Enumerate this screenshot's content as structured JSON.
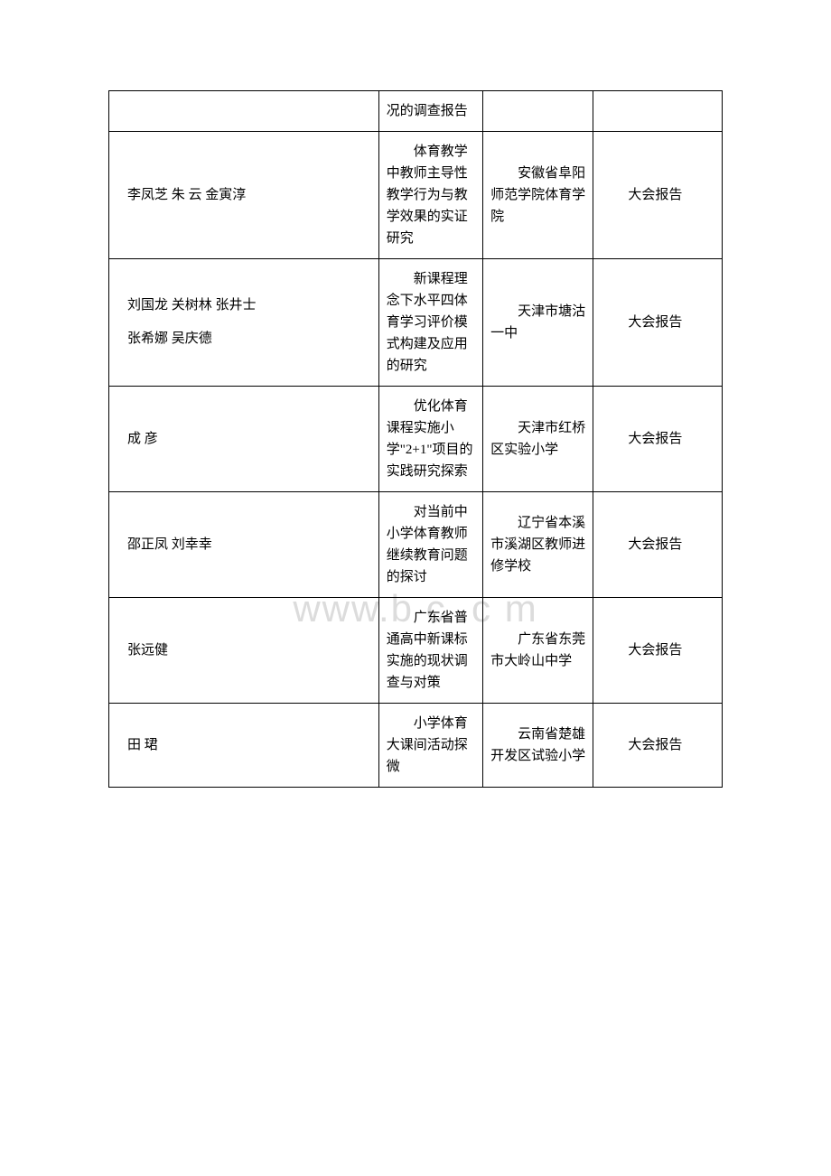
{
  "watermark": "www.b    c  .c   m",
  "table": {
    "columns": [
      "authors",
      "title",
      "organization",
      "type"
    ],
    "column_widths": [
      "44%",
      "17%",
      "18%",
      "21%"
    ],
    "border_color": "#000000",
    "font_size": 15,
    "font_family": "SimSun",
    "text_color": "#000000",
    "background_color": "#ffffff",
    "rows": [
      {
        "authors": "",
        "title": "况的调查报告",
        "organization": "",
        "type": ""
      },
      {
        "authors": "李凤芝 朱 云 金寅淳",
        "title": "体育教学中教师主导性教学行为与教学效果的实证研究",
        "organization": "安徽省阜阳师范学院体育学院",
        "type": "大会报告"
      },
      {
        "authors": "刘国龙 关树林 张井士\n张希娜 吴庆德",
        "title": "新课程理念下水平四体育学习评价模式构建及应用的研究",
        "organization": "天津市塘沽一中",
        "type": "大会报告"
      },
      {
        "authors": "成 彦",
        "title": "优化体育课程实施小学\"2+1\"项目的实践研究探索",
        "organization": "天津市红桥区实验小学",
        "type": "大会报告"
      },
      {
        "authors": "邵正凤 刘幸幸",
        "title": "对当前中小学体育教师继续教育问题的探讨",
        "organization": "辽宁省本溪市溪湖区教师进修学校",
        "type": "大会报告"
      },
      {
        "authors": "张远健",
        "title": "广东省普通高中新课标实施的现状调查与对策",
        "organization": "广东省东莞市大岭山中学",
        "type": "大会报告"
      },
      {
        "authors": "田 珺",
        "title": "小学体育大课间活动探微",
        "organization": "云南省楚雄开发区试验小学",
        "type": "大会报告"
      }
    ]
  }
}
